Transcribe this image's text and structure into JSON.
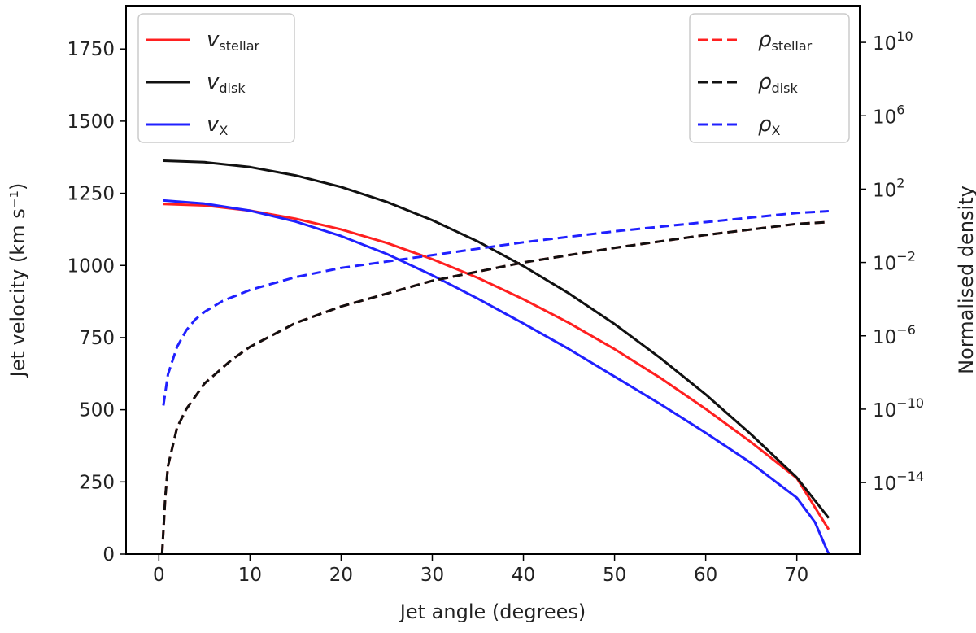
{
  "chart_data": {
    "type": "line",
    "xlabel": "Jet angle (degrees)",
    "ylabel": "Jet velocity (km s⁻¹)",
    "y2label": "Normalised density",
    "xlim": [
      -3.6,
      76.9
    ],
    "ylim": [
      0,
      1900
    ],
    "y2lim_log10": [
      -17.9,
      12.0
    ],
    "x_ticks": [
      0,
      10,
      20,
      30,
      40,
      50,
      60,
      70
    ],
    "x_tick_labels": [
      "0",
      "10",
      "20",
      "30",
      "40",
      "50",
      "60",
      "70"
    ],
    "y_ticks": [
      0,
      250,
      500,
      750,
      1000,
      1250,
      1500,
      1750
    ],
    "y_tick_labels": [
      "0",
      "250",
      "500",
      "750",
      "1000",
      "1250",
      "1500",
      "1750"
    ],
    "y2_ticks_log10": [
      10,
      6,
      2,
      -2,
      -6,
      -10,
      -14
    ],
    "y2_tick_labels": [
      {
        "base": "10",
        "exp": "10"
      },
      {
        "base": "10",
        "exp": "6"
      },
      {
        "base": "10",
        "exp": "2"
      },
      {
        "base": "10",
        "exp": "−2"
      },
      {
        "base": "10",
        "exp": "−6"
      },
      {
        "base": "10",
        "exp": "−10"
      },
      {
        "base": "10",
        "exp": "−14"
      }
    ],
    "legend_left": {
      "placement": "top-left",
      "entries": [
        {
          "symbol": "v",
          "sub": "stellar",
          "color": "#ff2020",
          "style": "solid"
        },
        {
          "symbol": "v",
          "sub": "disk",
          "color": "#111111",
          "style": "solid"
        },
        {
          "symbol": "v",
          "sub": "X",
          "color": "#2020ff",
          "style": "solid"
        }
      ]
    },
    "legend_right": {
      "placement": "top-right",
      "entries": [
        {
          "symbol": "ρ",
          "sub": "stellar",
          "color": "#ff2020",
          "style": "dashed"
        },
        {
          "symbol": "ρ",
          "sub": "disk",
          "color": "#111111",
          "style": "dashed"
        },
        {
          "symbol": "ρ",
          "sub": "X",
          "color": "#2020ff",
          "style": "dashed"
        }
      ]
    },
    "series": [
      {
        "name": "v_stellar",
        "axis": "left",
        "color": "#ff2020",
        "style": "solid",
        "x": [
          0.5,
          5,
          10,
          15,
          20,
          25,
          30,
          35,
          40,
          45,
          50,
          55,
          60,
          65,
          70,
          73.5
        ],
        "y": [
          1213,
          1208,
          1190,
          1162,
          1125,
          1078,
          1022,
          957,
          883,
          801,
          710,
          611,
          503,
          387,
          263,
          85
        ]
      },
      {
        "name": "v_disk",
        "axis": "left",
        "color": "#111111",
        "style": "solid",
        "x": [
          0.5,
          5,
          10,
          15,
          20,
          25,
          30,
          35,
          40,
          45,
          50,
          55,
          60,
          65,
          70,
          73.5
        ],
        "y": [
          1363,
          1358,
          1341,
          1312,
          1272,
          1220,
          1157,
          1083,
          998,
          903,
          797,
          680,
          553,
          414,
          265,
          125
        ]
      },
      {
        "name": "v_X",
        "axis": "left",
        "color": "#2020ff",
        "style": "solid",
        "x": [
          0.5,
          5,
          10,
          15,
          20,
          25,
          30,
          35,
          40,
          45,
          50,
          55,
          60,
          65,
          70,
          72,
          73.5
        ],
        "y": [
          1225,
          1214,
          1190,
          1152,
          1102,
          1040,
          966,
          885,
          799,
          710,
          615,
          520,
          420,
          315,
          195,
          110,
          0
        ]
      },
      {
        "name": "rho_stellar",
        "axis": "right",
        "color": "#ff2020",
        "style": "dashed",
        "x": [
          0.35,
          0.7,
          1,
          2,
          3,
          5,
          8,
          10,
          15,
          20,
          30,
          40,
          50,
          60,
          70,
          73.5
        ],
        "log10_y": [
          -17.9,
          -14.8,
          -13.1,
          -11.0,
          -10.0,
          -8.6,
          -7.3,
          -6.6,
          -5.3,
          -4.4,
          -3.0,
          -2.0,
          -1.2,
          -0.5,
          0.1,
          0.2
        ]
      },
      {
        "name": "rho_disk",
        "axis": "right",
        "color": "#111111",
        "style": "dashed",
        "x": [
          0.35,
          0.7,
          1,
          2,
          3,
          5,
          8,
          10,
          15,
          20,
          30,
          40,
          50,
          60,
          70,
          73.5
        ],
        "log10_y": [
          -17.9,
          -14.8,
          -13.1,
          -11.0,
          -10.0,
          -8.6,
          -7.3,
          -6.6,
          -5.3,
          -4.4,
          -3.0,
          -2.0,
          -1.2,
          -0.5,
          0.1,
          0.2
        ]
      },
      {
        "name": "rho_X",
        "axis": "right",
        "color": "#2020ff",
        "style": "dashed",
        "x": [
          0.5,
          1,
          2,
          3,
          4,
          5,
          7,
          10,
          15,
          20,
          30,
          40,
          50,
          60,
          70,
          73.5
        ],
        "log10_y": [
          -9.8,
          -8.1,
          -6.6,
          -5.7,
          -5.1,
          -4.7,
          -4.1,
          -3.5,
          -2.8,
          -2.3,
          -1.6,
          -0.9,
          -0.3,
          0.2,
          0.7,
          0.8
        ]
      }
    ]
  }
}
